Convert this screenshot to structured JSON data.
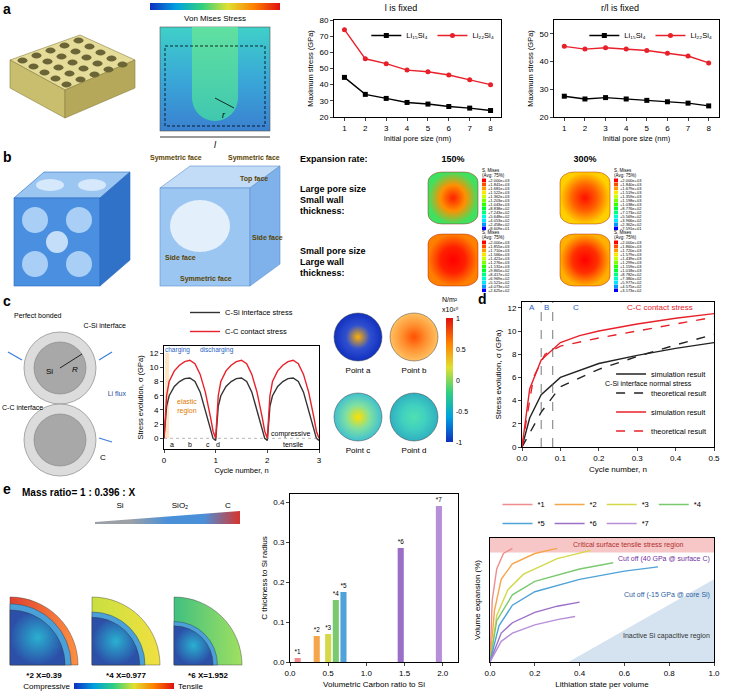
{
  "panels": {
    "a": {
      "letter": "a",
      "colorbar_title": "Von Mises Stress",
      "pore_radius": "r",
      "cell_length": "l"
    },
    "b": {
      "letter": "b",
      "face_labels": [
        "Symmetric face",
        "Symmetric face",
        "Top face",
        "Side face",
        "Side face",
        "Symmetric face"
      ],
      "header": "Expansion rate:",
      "rates": [
        "150%",
        "300%"
      ],
      "rows": [
        "Large pore size Small wall thickness:",
        "Small pore size Large wall thickness:"
      ],
      "legend_title": [
        "S, Mises",
        "(Avg: 75%)"
      ],
      "legends": [
        [
          [
            "+2.000e+03",
            "+1.841e+03",
            "+1.681e+03",
            "+1.522e+03",
            "+1.362e+03",
            "+1.203e+03",
            "+1.043e+03",
            "+8.838e+02",
            "+7.243e+02",
            "+5.648e+02",
            "+4.053e+02",
            "+2.458e+02",
            "+8.609e+01"
          ],
          [
            "+2.000e+03",
            "+1.840e+03",
            "+1.679e+03",
            "+1.519e+03",
            "+1.359e+03",
            "+1.198e+03",
            "+1.038e+03",
            "+8.776e+02",
            "+7.173e+02",
            "+5.569e+02",
            "+3.966e+02",
            "+2.362e+02",
            "+7.591e+01"
          ]
        ],
        [
          [
            "+2.000e+03",
            "+1.855e+03",
            "+1.710e+03",
            "+1.566e+03",
            "+1.421e+03",
            "+1.276e+03",
            "+1.131e+03",
            "+9.865e+02",
            "+8.417e+02",
            "+6.969e+02",
            "+5.521e+02",
            "+4.073e+02",
            "+2.625e+02"
          ],
          [
            "+2.000e+03",
            "+1.860e+03",
            "+1.720e+03",
            "+1.579e+03",
            "+1.439e+03",
            "+1.299e+03",
            "+1.159e+03",
            "+1.018e+03",
            "+8.782e+02",
            "+7.380e+02",
            "+5.977e+02",
            "+4.575e+02",
            "+3.173e+02"
          ]
        ]
      ]
    },
    "c": {
      "letter": "c",
      "diagram_labels": [
        "Perfect bonded",
        "C-Si interface",
        "Si",
        "R",
        "C-C interface",
        "C",
        "Li flux"
      ],
      "points": [
        "Point a",
        "Point b",
        "Point c",
        "Point d"
      ],
      "colorbar": {
        "unit": "N/m²",
        "scale": "x10¹⁰",
        "ticks": [
          1,
          0.5,
          0,
          -0.5,
          -1
        ]
      }
    },
    "d": {
      "letter": "d"
    },
    "e": {
      "letter": "e",
      "mass_ratio": "Mass ratio=  1 : 0.396 : X",
      "layers": [
        "Si",
        "SiO₂",
        "C"
      ],
      "samples": [
        {
          "name": "*2",
          "label": "X=0.39"
        },
        {
          "name": "*4",
          "label": "X=0.977"
        },
        {
          "name": "*6",
          "label": "X=1.952"
        }
      ],
      "colorbar": [
        "Compressive",
        "Tensile"
      ]
    }
  },
  "chart_data": [
    {
      "type": "line",
      "title": "l is fixed",
      "xlabel": "Initial pore size (nm)",
      "ylabel": "Maximum stress (GPa)",
      "x": [
        1,
        2,
        3,
        4,
        5,
        6,
        7,
        8
      ],
      "xlim": [
        0.5,
        8.5
      ],
      "xticks": [
        1,
        2,
        3,
        4,
        5,
        6,
        7,
        8
      ],
      "ylim": [
        20,
        80
      ],
      "yticks": [
        20,
        30,
        40,
        50,
        60,
        70,
        80
      ],
      "legend": "top right",
      "series": [
        {
          "name": "Li₁₅Si₄",
          "color": "#000000",
          "marker": "square",
          "values": [
            44.5,
            34,
            31.5,
            29,
            28,
            26.5,
            25.5,
            24
          ]
        },
        {
          "name": "Li₂₂Si₄",
          "color": "#e8202a",
          "marker": "circle",
          "values": [
            74,
            56,
            53,
            49,
            48,
            46,
            43,
            40
          ]
        }
      ]
    },
    {
      "type": "line",
      "title": "r/l is fixed",
      "xlabel": "Initial pore size (nm)",
      "ylabel": "Maximum stress (GPa)",
      "x": [
        1,
        2,
        3,
        4,
        5,
        6,
        7,
        8
      ],
      "xlim": [
        0.5,
        8.5
      ],
      "xticks": [
        1,
        2,
        3,
        4,
        5,
        6,
        7,
        8
      ],
      "ylim": [
        20,
        55
      ],
      "yticks": [
        20,
        30,
        40,
        50
      ],
      "legend": "top right",
      "series": [
        {
          "name": "Li₁₅Si₄",
          "color": "#000000",
          "marker": "square",
          "values": [
            27.5,
            26.5,
            27,
            26.5,
            26,
            25.5,
            25,
            24
          ]
        },
        {
          "name": "Li₂₂Si₄",
          "color": "#e8202a",
          "marker": "circle",
          "values": [
            45.5,
            44.5,
            45,
            44.5,
            44,
            43,
            42,
            39.5
          ]
        }
      ]
    },
    {
      "type": "line",
      "xlabel": "Cycle number, n",
      "ylabel": "Stress evolution, σ (GPa)",
      "xlim": [
        0,
        3
      ],
      "xticks": [
        0,
        1,
        2,
        3
      ],
      "ylim": [
        -1.5,
        13
      ],
      "yticks": [
        0,
        2,
        4,
        6,
        8,
        10,
        12
      ],
      "legend": "top",
      "annotations": [
        "charging",
        "discharging",
        "elastic region",
        "compressive",
        "tensile",
        "a",
        "b",
        "c",
        "d"
      ],
      "series": [
        {
          "name": "C-Si interface stress",
          "color": "#333333",
          "line_style": "solid",
          "x": [
            0,
            0.05,
            0.1,
            0.2,
            0.3,
            0.4,
            0.5,
            0.6,
            0.7,
            0.8,
            0.9,
            0.95,
            1.0,
            1.05,
            1.1,
            1.2,
            1.3,
            1.4,
            1.5,
            1.6,
            1.7,
            1.8,
            1.9,
            1.95,
            2.0,
            2.05,
            2.1,
            2.2,
            2.3,
            2.4,
            2.5,
            2.6,
            2.7,
            2.8,
            2.9,
            2.95,
            3.0
          ],
          "values": [
            0,
            4.5,
            6,
            7.3,
            8,
            8.4,
            8.5,
            8,
            6.5,
            4,
            1.5,
            0,
            -0.3,
            4.5,
            6,
            7.3,
            8,
            8.4,
            8.5,
            8,
            6.5,
            4,
            1.5,
            0,
            -0.3,
            4.5,
            6,
            7.3,
            8,
            8.4,
            8.5,
            8,
            6.5,
            4,
            1.5,
            0,
            -0.3
          ]
        },
        {
          "name": "C-C contact stress",
          "color": "#e8202a",
          "line_style": "solid",
          "x": [
            0,
            0.05,
            0.1,
            0.2,
            0.3,
            0.4,
            0.5,
            0.6,
            0.7,
            0.8,
            0.9,
            0.95,
            1.0,
            1.05,
            1.1,
            1.2,
            1.3,
            1.4,
            1.5,
            1.6,
            1.7,
            1.8,
            1.9,
            1.95,
            2.0,
            2.05,
            2.1,
            2.2,
            2.3,
            2.4,
            2.5,
            2.6,
            2.7,
            2.8,
            2.9,
            2.95,
            3.0
          ],
          "values": [
            0,
            6,
            8,
            9.5,
            10.3,
            10.8,
            11,
            10.5,
            9,
            6.5,
            3,
            1,
            0,
            6,
            8,
            9.5,
            10.3,
            10.8,
            11,
            10.5,
            9,
            6.5,
            3,
            1,
            0,
            6,
            8,
            9.5,
            10.3,
            10.8,
            11,
            10.5,
            9,
            6.5,
            3,
            1,
            0
          ]
        }
      ]
    },
    {
      "type": "line",
      "xlabel": "Cycle number, n",
      "ylabel": "Stress evolution, σ (GPa)",
      "xlim": [
        0,
        0.5
      ],
      "xticks": [
        {
          "value": 0,
          "label": "0.0"
        },
        0.1,
        0.2,
        0.3,
        0.4,
        0.5
      ],
      "ylim": [
        0,
        12.5
      ],
      "yticks": [
        0,
        2,
        4,
        6,
        8,
        10,
        12
      ],
      "legend": "bottom right",
      "annotations": [
        "C-C contact stress",
        "C-Si interface normal stress"
      ],
      "regions": [
        {
          "label": "A",
          "start": 0,
          "end": 0.05
        },
        {
          "label": "B",
          "start": 0.05,
          "end": 0.08
        },
        {
          "label": "C",
          "start": 0.08,
          "end": 0.2
        }
      ],
      "series": [
        {
          "name": "simulation result",
          "color": "#222222",
          "line_style": "solid",
          "x": [
            0,
            0.02,
            0.05,
            0.1,
            0.2,
            0.3,
            0.4,
            0.5
          ],
          "values": [
            0,
            2.5,
            4.5,
            6,
            7.2,
            7.9,
            8.5,
            9
          ]
        },
        {
          "name": "theoretical result",
          "color": "#222222",
          "line_style": "dashed",
          "x": [
            0,
            0.05,
            0.1,
            0.2,
            0.3,
            0.4,
            0.5
          ],
          "values": [
            0,
            3,
            5.2,
            6.7,
            7.8,
            8.8,
            9.7
          ]
        },
        {
          "name": "simulation result",
          "color": "#e8202a",
          "line_style": "solid",
          "x": [
            0,
            0.02,
            0.05,
            0.1,
            0.15,
            0.2,
            0.3,
            0.4,
            0.5
          ],
          "values": [
            0,
            5,
            7.5,
            9,
            9.6,
            10,
            10.6,
            11.1,
            11.5
          ]
        },
        {
          "name": "theoretical result",
          "color": "#e8202a",
          "line_style": "dashed",
          "x": [
            0,
            0.03,
            0.06,
            0.1,
            0.2,
            0.3,
            0.4,
            0.5
          ],
          "values": [
            0,
            6,
            8,
            8.7,
            9.4,
            10,
            10.6,
            11.2
          ]
        }
      ]
    },
    {
      "type": "bar",
      "xlabel": "Volumetric Carbon ratio to Si",
      "ylabel": "C thickness to Si radius",
      "x": [
        0.1,
        0.35,
        0.5,
        0.6,
        0.7,
        1.45,
        1.95
      ],
      "values": [
        0.01,
        0.065,
        0.07,
        0.155,
        0.175,
        0.285,
        0.39
      ],
      "names": [
        "*1",
        "*2",
        "*3",
        "*4",
        "*5",
        "*6",
        "*7"
      ],
      "colors": [
        "#f08c8c",
        "#f5a54a",
        "#d4d84a",
        "#7bc96f",
        "#4fa3d8",
        "#9b6fc8",
        "#b78fd8"
      ],
      "xlim": [
        0,
        2.2
      ],
      "xticks": [
        {
          "value": 0,
          "label": "0.0"
        },
        0.5,
        {
          "value": 1,
          "label": "1.0"
        },
        1.5,
        {
          "value": 2,
          "label": "2.0"
        }
      ],
      "ylim": [
        0,
        0.42
      ],
      "yticks": [
        {
          "value": 0,
          "label": "0.0"
        },
        0.1,
        0.2,
        0.3,
        0.4
      ]
    },
    {
      "type": "line",
      "xlabel": "Lithiation state per volume",
      "ylabel": "Volume expansion (%)",
      "xlim": [
        0,
        1
      ],
      "xticks": [
        {
          "value": 0,
          "label": "0.0"
        },
        0.2,
        0.4,
        0.6,
        0.8,
        {
          "value": 1,
          "label": "1.0"
        }
      ],
      "ylim": [
        0,
        12
      ],
      "yticks": [],
      "tick_labels": "x",
      "legend": "top",
      "annotations": [
        "Critical surface tensile stress region",
        "Cut off (40 GPa @ surface C)",
        "Cut off (-15 GPa @ core Si)",
        "Inactive Si capacitive region"
      ],
      "series": [
        {
          "name": "*1",
          "color": "#f08c8c",
          "x": [
            0,
            0.01,
            0.03,
            0.06,
            0.1
          ],
          "values": [
            0,
            6,
            9,
            10.5,
            11
          ]
        },
        {
          "name": "*2",
          "color": "#f5a54a",
          "x": [
            0,
            0.02,
            0.05,
            0.1,
            0.2,
            0.3
          ],
          "values": [
            0,
            5,
            8,
            9.5,
            10.5,
            11
          ]
        },
        {
          "name": "*3",
          "color": "#d4d84a",
          "x": [
            0,
            0.03,
            0.08,
            0.15,
            0.3,
            0.45
          ],
          "values": [
            0,
            4.5,
            7,
            8.5,
            10,
            10.8
          ]
        },
        {
          "name": "*4",
          "color": "#7bc96f",
          "x": [
            0,
            0.03,
            0.1,
            0.2,
            0.4,
            0.55
          ],
          "values": [
            0,
            4,
            6.5,
            7.8,
            9,
            9.6
          ]
        },
        {
          "name": "*5",
          "color": "#4fa3d8",
          "x": [
            0,
            0.04,
            0.1,
            0.2,
            0.4,
            0.6,
            0.75
          ],
          "values": [
            0,
            3.5,
            5.5,
            6.8,
            8,
            8.8,
            9.2
          ]
        },
        {
          "name": "*6",
          "color": "#9b6fc8",
          "x": [
            0,
            0.05,
            0.1,
            0.2,
            0.3,
            0.4
          ],
          "values": [
            0,
            2.8,
            3.8,
            4.8,
            5.4,
            5.8
          ]
        },
        {
          "name": "*7",
          "color": "#b78fd8",
          "x": [
            0,
            0.05,
            0.1,
            0.2,
            0.3,
            0.38
          ],
          "values": [
            0,
            2,
            2.8,
            3.6,
            4.1,
            4.4
          ]
        }
      ]
    }
  ]
}
